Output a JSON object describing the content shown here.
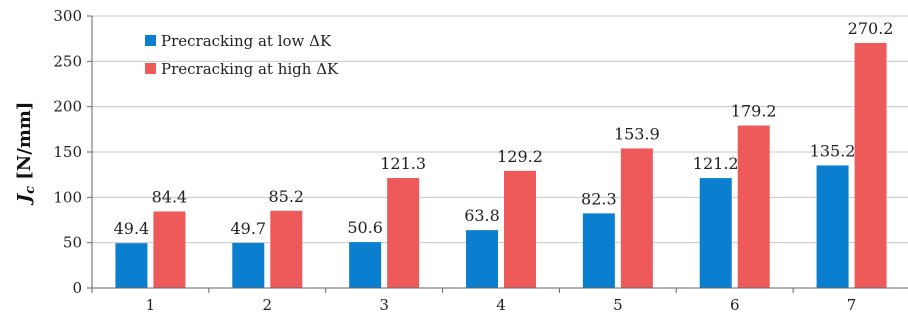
{
  "chart_data": {
    "type": "bar",
    "categories": [
      "1",
      "2",
      "3",
      "4",
      "5",
      "6",
      "7"
    ],
    "series": [
      {
        "name": "Precracking at low ΔK",
        "color": "#0a7fd0",
        "values": [
          49.4,
          49.7,
          50.6,
          63.8,
          82.3,
          121.2,
          135.2
        ]
      },
      {
        "name": "Precracking at high ΔK",
        "color": "#ee5a5a",
        "values": [
          84.4,
          85.2,
          121.3,
          129.2,
          153.9,
          179.2,
          270.2
        ]
      }
    ],
    "ylabel_main": "J",
    "ylabel_sub": "c",
    "ylabel_unit": " [N/mm]",
    "xlabel": "",
    "ylim": [
      0,
      300
    ],
    "yticks": [
      0,
      50,
      100,
      150,
      200,
      250,
      300
    ],
    "grid": true,
    "legend": "top-left"
  }
}
